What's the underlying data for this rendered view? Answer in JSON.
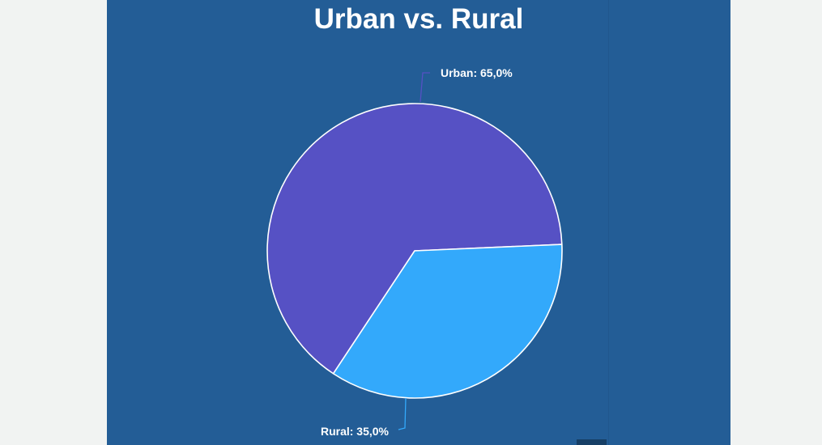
{
  "chart_data": {
    "type": "pie",
    "title": "Urban vs. Rural",
    "slices": [
      {
        "label": "Urban: 65,0%",
        "name": "Urban",
        "value": 65.0,
        "color": "#5651c4"
      },
      {
        "label": "Rural: 35,0%",
        "name": "Rural",
        "value": 35.0,
        "color": "#33a9fb"
      }
    ],
    "leader_colors": [
      "#5651c4",
      "#33a9fb"
    ],
    "background": "#235d96",
    "outline_color": "#ffffff"
  }
}
